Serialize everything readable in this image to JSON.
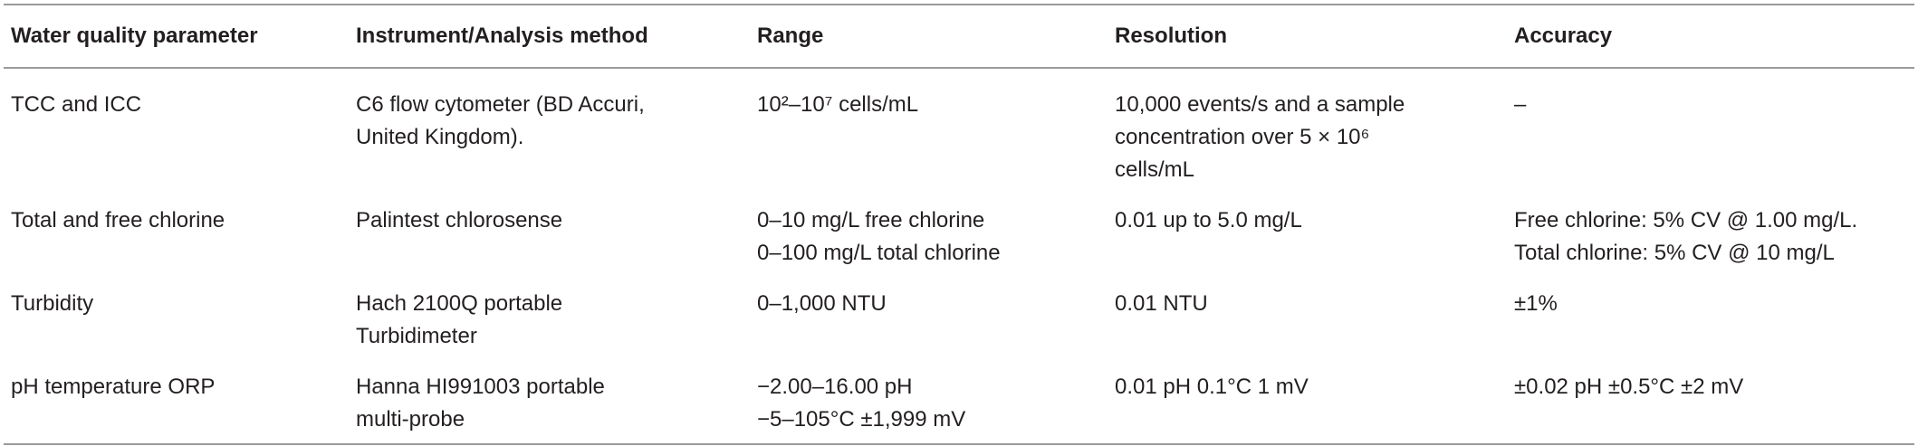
{
  "table": {
    "header": [
      "Water quality parameter",
      "Instrument/Analysis method",
      "Range",
      "Resolution",
      "Accuracy"
    ],
    "rows": [
      [
        [
          "TCC and ICC"
        ],
        [
          "C6 flow cytometer (BD Accuri,",
          "United Kingdom)."
        ],
        [
          "10²–10⁷ cells/mL"
        ],
        [
          "10,000 events/s and a sample",
          "concentration over 5 × 10⁶",
          "cells/mL"
        ],
        [
          "–"
        ]
      ],
      [
        [
          "Total and free chlorine"
        ],
        [
          "Palintest chlorosense"
        ],
        [
          "0–10 mg/L free chlorine",
          "0–100 mg/L total chlorine"
        ],
        [
          "0.01 up to 5.0 mg/L"
        ],
        [
          "Free chlorine: 5% CV @ 1.00 mg/L.",
          "Total chlorine: 5% CV @ 10 mg/L"
        ]
      ],
      [
        [
          "Turbidity"
        ],
        [
          "Hach 2100Q portable",
          "Turbidimeter"
        ],
        [
          "0–1,000 NTU"
        ],
        [
          "0.01 NTU"
        ],
        [
          "±1%"
        ]
      ],
      [
        [
          "pH temperature ORP"
        ],
        [
          "Hanna HI991003 portable",
          "multi-probe"
        ],
        [
          "−2.00–16.00 pH",
          "−5–105°C ±1,999 mV"
        ],
        [
          "0.01 pH 0.1°C 1 mV"
        ],
        [
          "±0.02 pH ±0.5°C ±2 mV"
        ]
      ]
    ]
  }
}
